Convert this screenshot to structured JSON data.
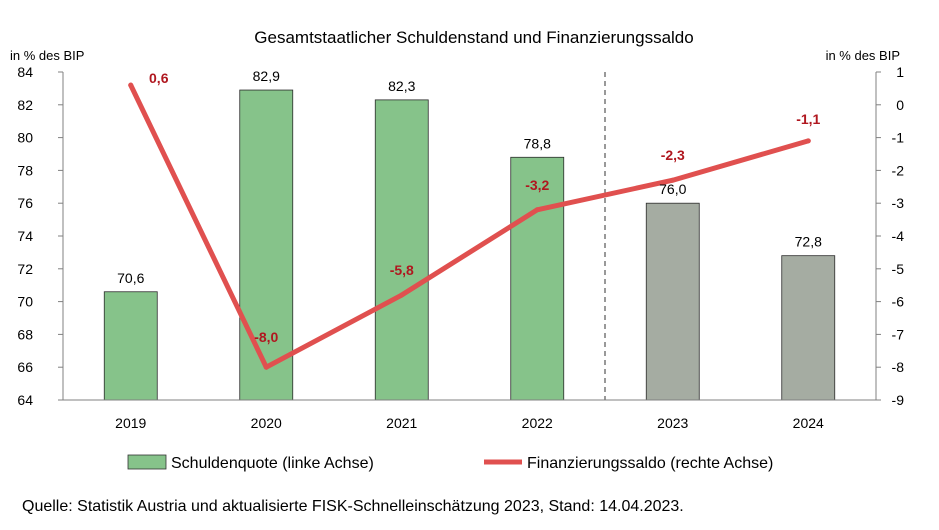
{
  "chart_data": {
    "type": "bar",
    "title": "Gesamtstaatlicher Schuldenstand und Finanzierungssaldo",
    "ylabel_left": "in % des BIP",
    "ylabel_right": "in % des BIP",
    "categories": [
      "2019",
      "2020",
      "2021",
      "2022",
      "2023",
      "2024"
    ],
    "ylim_left": [
      64,
      84
    ],
    "yticks_left": [
      64,
      66,
      68,
      70,
      72,
      74,
      76,
      78,
      80,
      82,
      84
    ],
    "ylim_right": [
      -9,
      1
    ],
    "yticks_right": [
      -9,
      -8,
      -7,
      -6,
      -5,
      -4,
      -3,
      -2,
      -1,
      0,
      1
    ],
    "series": [
      {
        "name": "Schuldenquote (linke Achse)",
        "kind": "bar",
        "axis": "left",
        "values": [
          70.6,
          82.9,
          82.3,
          78.8,
          76.0,
          72.8
        ],
        "labels": [
          "70,6",
          "82,9",
          "82,3",
          "78,8",
          "76,0",
          "72,8"
        ],
        "colors": [
          "#86c38a",
          "#86c38a",
          "#86c38a",
          "#86c38a",
          "#a5aca2",
          "#a5aca2"
        ]
      },
      {
        "name": "Finanzierungssaldo (rechte Achse)",
        "kind": "line",
        "axis": "right",
        "values": [
          0.6,
          -8.0,
          -5.8,
          -3.2,
          -2.3,
          -1.1
        ],
        "labels": [
          "0,6",
          "-8,0",
          "-5,8",
          "-3,2",
          "-2,3",
          "-1,1"
        ],
        "color": "#e0504f"
      }
    ],
    "forecast_divider_after": "2022",
    "grid": false,
    "legend_position": "bottom"
  },
  "colors": {
    "bar_actual": "#86c38a",
    "bar_forecast": "#a5aca2",
    "line": "#e0504f",
    "line_label": "#b0171f"
  },
  "source": "Quelle: Statistik Austria und aktualisierte FISK-Schnelleinschätzung 2023, Stand: 14.04.2023."
}
